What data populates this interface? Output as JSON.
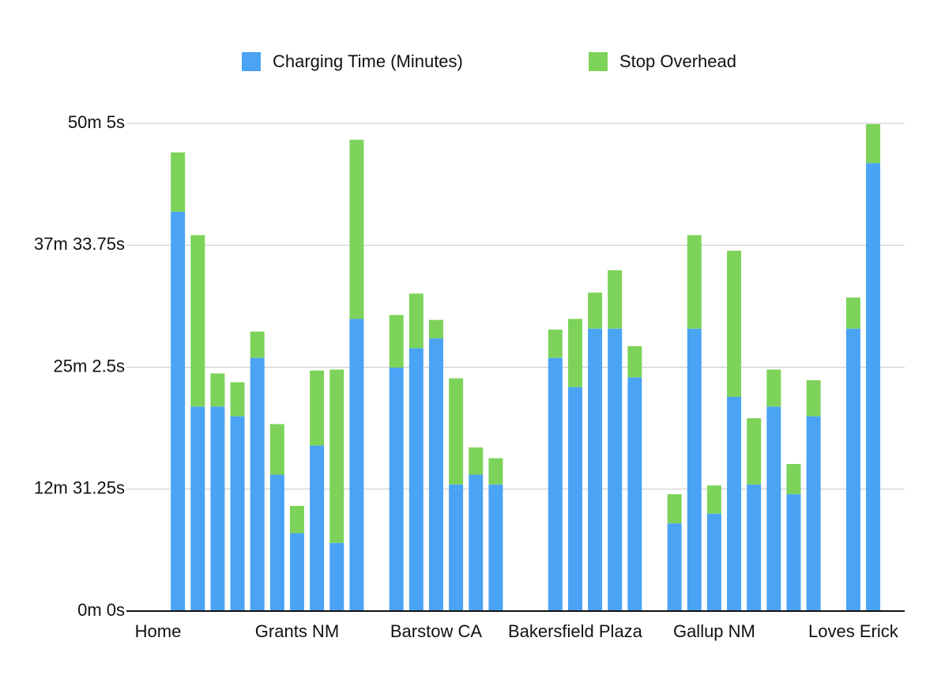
{
  "chart_data": {
    "type": "stacked_bar",
    "categories": [
      "Home",
      null,
      null,
      null,
      null,
      null,
      null,
      "Grants NM",
      null,
      null,
      null,
      null,
      null,
      null,
      "Barstow CA",
      null,
      null,
      null,
      null,
      null,
      null,
      "Bakersfield Plaza",
      null,
      null,
      null,
      null,
      null,
      null,
      "Gallup NM",
      null,
      null,
      null,
      null,
      null,
      null,
      "Loves Erick",
      null
    ],
    "series": [
      {
        "name": "Charging Time (Minutes)",
        "color": "#4aa3f5",
        "values": [
          null,
          41.0,
          21.0,
          21.0,
          20.0,
          26.0,
          14.0,
          8.0,
          17.0,
          7.0,
          30.0,
          null,
          25.0,
          27.0,
          28.0,
          13.0,
          14.0,
          13.0,
          null,
          null,
          26.0,
          23.0,
          29.0,
          29.0,
          24.0,
          null,
          9.0,
          29.0,
          10.0,
          22.0,
          13.0,
          21.0,
          12.0,
          20.0,
          null,
          29.0,
          46.0
        ]
      },
      {
        "name": "Stop Overhead",
        "color": "#7dd35a",
        "values": [
          null,
          6.1,
          17.6,
          3.4,
          3.5,
          2.7,
          5.2,
          2.8,
          7.7,
          17.8,
          18.4,
          null,
          5.4,
          5.6,
          1.9,
          10.9,
          2.8,
          2.7,
          null,
          null,
          2.9,
          7.0,
          3.7,
          6.0,
          3.2,
          null,
          3.0,
          9.6,
          2.9,
          15.0,
          6.8,
          3.8,
          3.1,
          3.7,
          null,
          3.2,
          4.0
        ]
      }
    ],
    "ylim": [
      0,
      50.083333
    ],
    "yticks": [
      {
        "value": 0,
        "label": "0m 0s"
      },
      {
        "value": 12.520833,
        "label": "12m 31.25s"
      },
      {
        "value": 25.041667,
        "label": "25m 2.5s"
      },
      {
        "value": 37.5625,
        "label": "37m 33.75s"
      },
      {
        "value": 50.083333,
        "label": "50m 5s"
      }
    ],
    "grid": true,
    "legend": "top"
  }
}
